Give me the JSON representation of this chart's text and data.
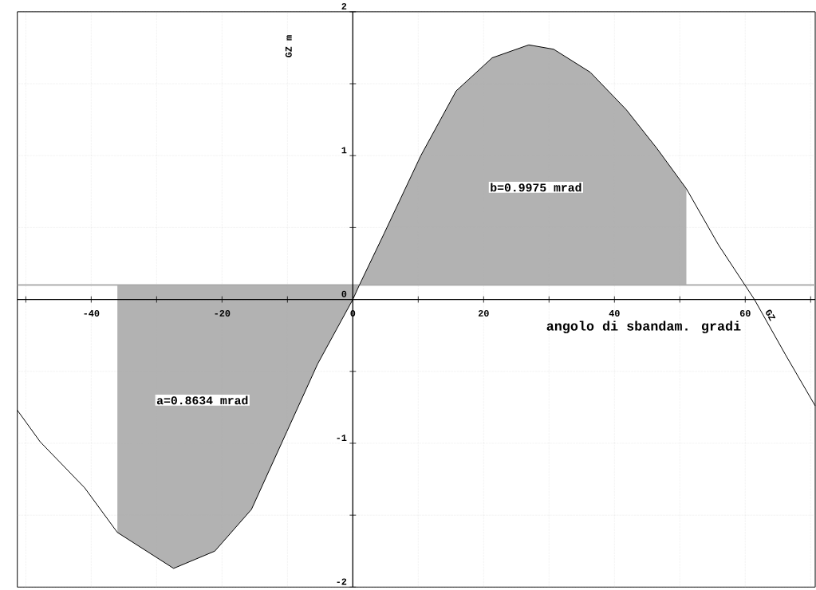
{
  "chart_data": {
    "type": "line",
    "xlabel": "angolo di sbandam. gradi",
    "ylabel": "GZ m",
    "x": [
      -51.3,
      -47.8,
      -41,
      -36,
      -27.4,
      -21.1,
      -15.5,
      -10.1,
      -5.4,
      0,
      1,
      4.8,
      10.4,
      15.8,
      21.3,
      26.9,
      30.7,
      36.3,
      41.8,
      46.5,
      51,
      55.9,
      61.4,
      66.1,
      70.7
    ],
    "series": [
      {
        "name": "GZ",
        "color": "#000000",
        "values": [
          -0.77,
          -0.99,
          -1.31,
          -1.62,
          -1.87,
          -1.75,
          -1.46,
          -0.92,
          -0.45,
          0,
          0.1,
          0.46,
          1.0,
          1.45,
          1.68,
          1.77,
          1.74,
          1.58,
          1.32,
          1.05,
          0.77,
          0.38,
          0,
          -0.38,
          -0.74
        ],
        "lower": [
          null,
          null,
          null,
          -1.62,
          -1.87,
          -1.75,
          -1.46,
          -0.92,
          -0.45,
          0,
          0.1,
          0.1,
          0.1,
          0.1,
          0.1,
          0.1,
          0.1,
          0.1,
          0.1,
          0.1,
          0.1,
          null,
          null,
          null,
          null
        ],
        "upper": [
          null,
          null,
          null,
          0.1,
          0.1,
          0.1,
          0.1,
          0.1,
          0.1,
          0.1,
          0.1,
          0.46,
          1.0,
          1.45,
          1.68,
          1.77,
          1.74,
          1.58,
          1.32,
          1.05,
          0.77,
          null,
          null,
          null,
          null
        ]
      }
    ],
    "xlim": [
      -51.3,
      70.7
    ],
    "ylim": [
      -2,
      2
    ],
    "xticks": [
      {
        "value": -50,
        "label": null
      },
      -40,
      {
        "value": -30,
        "label": null
      },
      -20,
      {
        "value": -10,
        "label": null
      },
      0,
      {
        "value": 10,
        "label": null
      },
      20,
      {
        "value": 30,
        "label": null
      },
      40,
      {
        "value": 50,
        "label": null
      },
      60,
      {
        "value": 70,
        "label": null
      }
    ],
    "yticks": [
      -2,
      {
        "value": -1.5,
        "label": null
      },
      -1,
      {
        "value": -0.5,
        "label": null
      },
      0,
      {
        "value": 0.5,
        "label": null
      },
      1,
      {
        "value": 1.5,
        "label": null
      },
      2
    ],
    "grid": true,
    "ref_lines": [
      {
        "axis": "y",
        "value": 0.1,
        "color": "#aaaaaa"
      }
    ],
    "annotations": [
      "a=0.8634 mrad",
      "b=0.9975 mrad"
    ]
  }
}
